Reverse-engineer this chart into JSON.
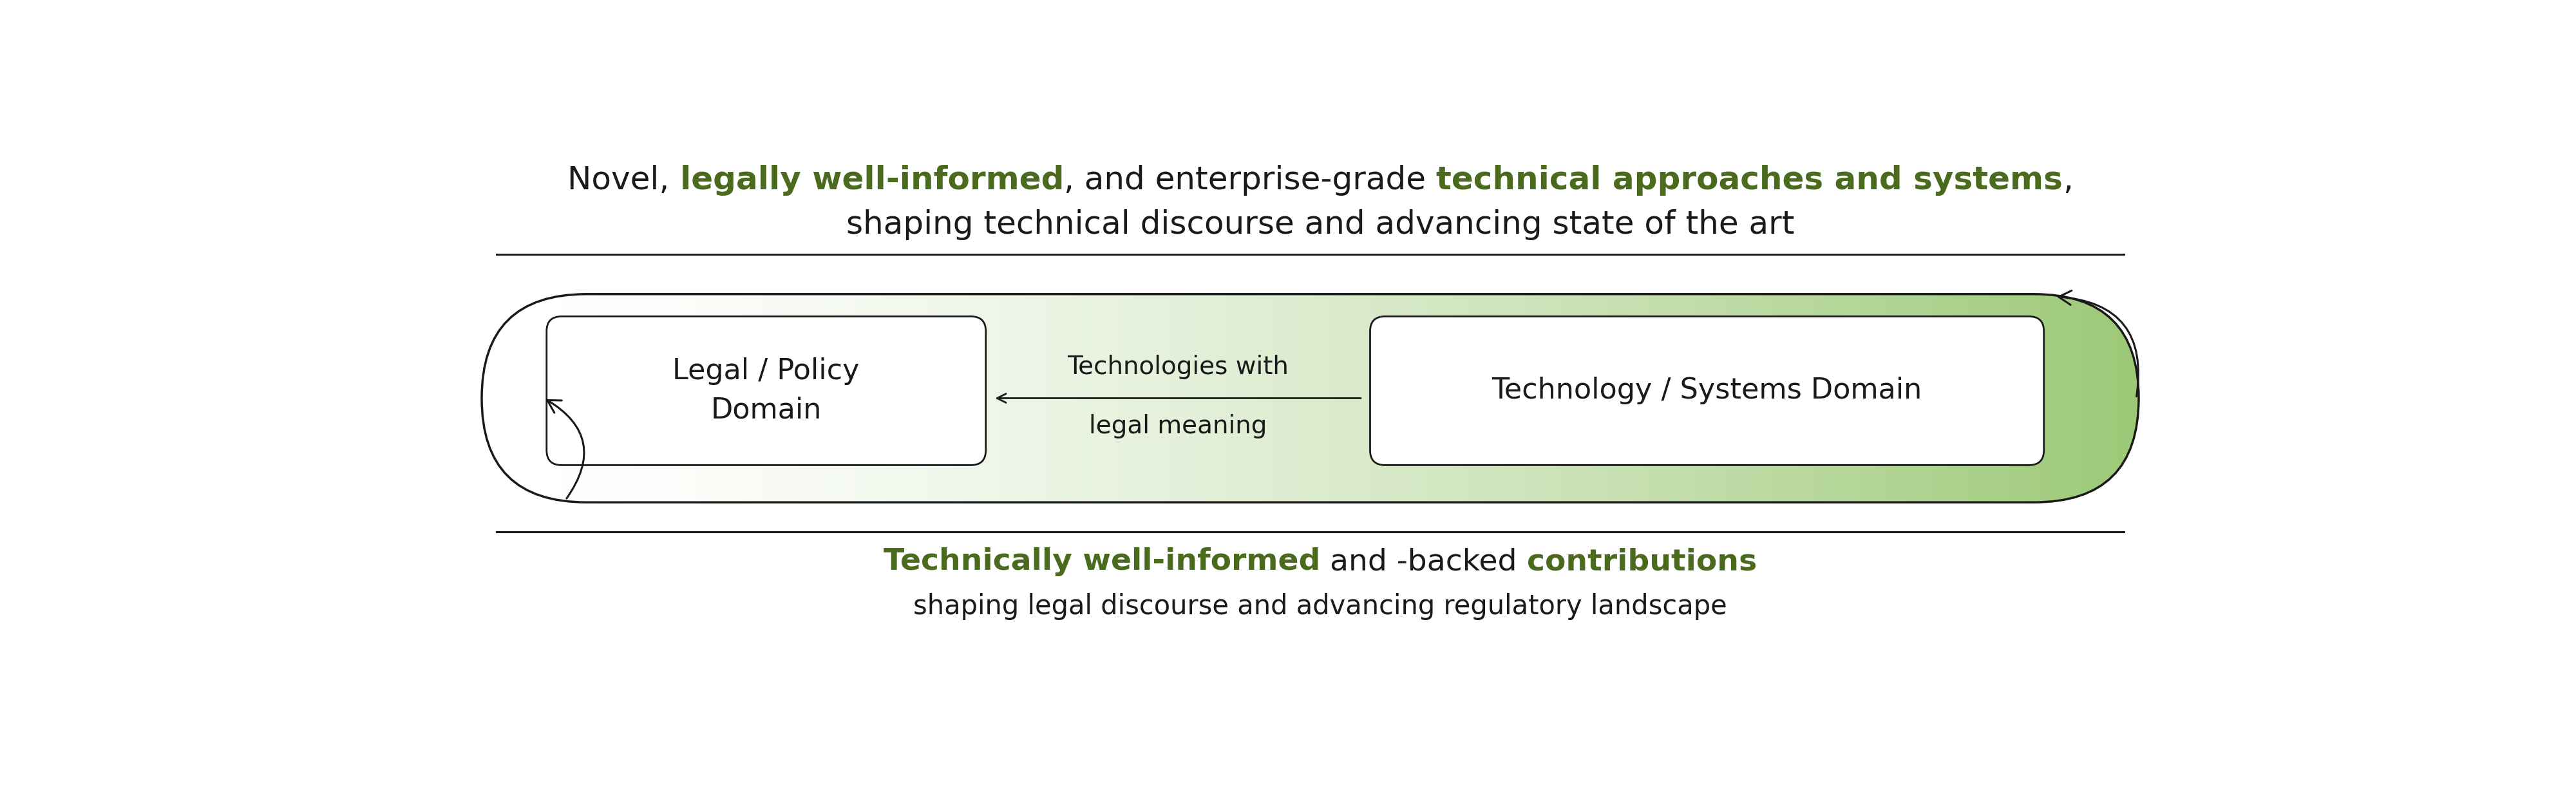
{
  "bg_color": "#ffffff",
  "dark_green": "#4a6b1e",
  "black": "#1a1a1a",
  "green_end": "#7ab648",
  "top_line2": "shaping technical discourse and advancing state of the art",
  "left_box_text": "Legal / Policy\nDomain",
  "right_box_text": "Technology / Systems Domain",
  "arrow_label_line1": "Technologies with",
  "arrow_label_line2": "legal meaning",
  "bottom_line2": "shaping legal discourse and advancing regulatory landscape",
  "font_size_top": 36,
  "font_size_boxes": 32,
  "font_size_arrow_label": 28,
  "font_size_bottom_bold": 34,
  "font_size_bottom_plain": 30,
  "figsize": [
    40.0,
    12.27
  ]
}
